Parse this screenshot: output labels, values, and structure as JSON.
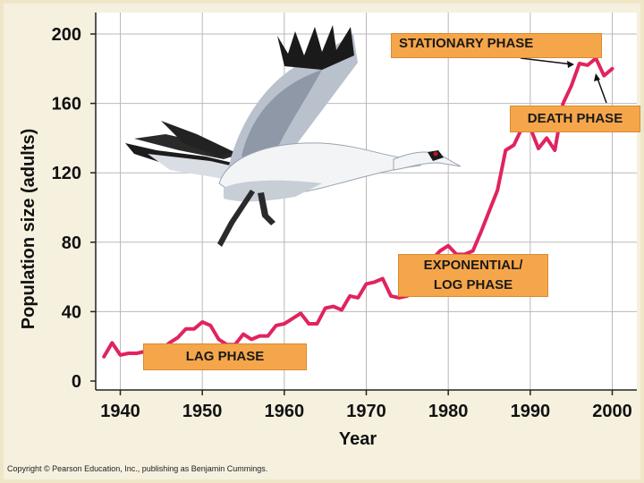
{
  "chart_data": {
    "type": "line",
    "title": "",
    "xlabel": "Year",
    "ylabel": "Population size (adults)",
    "xlim": [
      1937,
      2003
    ],
    "ylim": [
      0,
      200
    ],
    "x_ticks": [
      1940,
      1950,
      1960,
      1970,
      1980,
      1990,
      2000
    ],
    "y_ticks": [
      0,
      40,
      80,
      120,
      160,
      200
    ],
    "grid": true,
    "line_color": "#e0245e",
    "x": [
      1938,
      1939,
      1940,
      1941,
      1942,
      1943,
      1944,
      1945,
      1946,
      1947,
      1948,
      1949,
      1950,
      1951,
      1952,
      1953,
      1954,
      1955,
      1956,
      1957,
      1958,
      1959,
      1960,
      1961,
      1962,
      1963,
      1964,
      1965,
      1966,
      1967,
      1968,
      1969,
      1970,
      1971,
      1972,
      1973,
      1974,
      1975,
      1976,
      1977,
      1978,
      1979,
      1980,
      1981,
      1982,
      1983,
      1984,
      1985,
      1986,
      1987,
      1988,
      1989,
      1990,
      1991,
      1992,
      1993,
      1994,
      1995,
      1996,
      1997,
      1998,
      1999,
      2000
    ],
    "y": [
      14,
      22,
      15,
      16,
      16,
      17,
      16,
      18,
      22,
      25,
      30,
      30,
      34,
      32,
      24,
      21,
      21,
      27,
      24,
      26,
      26,
      32,
      33,
      36,
      39,
      33,
      33,
      42,
      43,
      41,
      49,
      48,
      56,
      57,
      59,
      49,
      48,
      49,
      52,
      58,
      70,
      75,
      78,
      73,
      73,
      75,
      86,
      98,
      110,
      133,
      136,
      146,
      146,
      134,
      140,
      133,
      160,
      170,
      183,
      182,
      186,
      176,
      180
    ]
  },
  "annotations": {
    "stationary": "STATIONARY PHASE",
    "death": "DEATH PHASE",
    "exponential_line1": "EXPONENTIAL/",
    "exponential_line2": "LOG PHASE",
    "lag": "LAG PHASE"
  },
  "copyright": "Copyright © Pearson Education, Inc., publishing as Benjamin Cummings.",
  "colors": {
    "callout": "#f6a64a",
    "line": "#e0245e",
    "background": "#f6f0de"
  },
  "image": "whooping-crane-illustration"
}
